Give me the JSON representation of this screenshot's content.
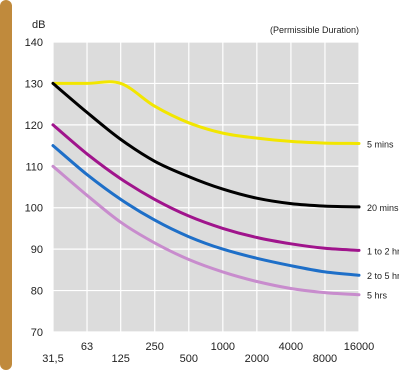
{
  "chart_data": {
    "type": "line",
    "title": "",
    "annotation": "(Permissible Duration)",
    "xlabel": "",
    "ylabel": "dB",
    "x_scale": "log",
    "x_ticks": [
      "31,5",
      "63",
      "125",
      "250",
      "500",
      "1000",
      "2000",
      "4000",
      "8000",
      "16000"
    ],
    "x": [
      31.5,
      63,
      125,
      250,
      500,
      1000,
      2000,
      4000,
      8000,
      16000
    ],
    "ylim": [
      70,
      140
    ],
    "y_ticks": [
      70,
      80,
      90,
      100,
      110,
      120,
      130,
      140
    ],
    "grid": true,
    "colors": {
      "plot_background": "#dcdcdc",
      "grid": "#ffffff",
      "left_band": "#c08a3c"
    },
    "series": [
      {
        "name": "5 mins",
        "color": "#f2e600",
        "values": [
          130,
          130,
          130,
          124.5,
          120.5,
          118,
          116.8,
          116,
          115.6,
          115.5
        ]
      },
      {
        "name": "20 mins",
        "color": "#000000",
        "values": [
          130,
          123,
          116.5,
          111.2,
          107.5,
          104.5,
          102.3,
          101.0,
          100.4,
          100.2
        ]
      },
      {
        "name": "1 to 2 hrs",
        "color": "#a0148c",
        "values": [
          120,
          113,
          107,
          102,
          98,
          95,
          92.8,
          91.3,
          90.2,
          89.7
        ]
      },
      {
        "name": "2 to 5 hrs",
        "color": "#1e6fc8",
        "values": [
          115,
          108,
          102,
          97,
          93,
          90,
          87.8,
          86,
          84.5,
          83.7
        ]
      },
      {
        "name": "5 hrs",
        "color": "#c88ccd",
        "values": [
          110,
          103,
          96.5,
          91.5,
          87.5,
          84.5,
          82.2,
          80.5,
          79.5,
          79.0
        ]
      }
    ]
  }
}
